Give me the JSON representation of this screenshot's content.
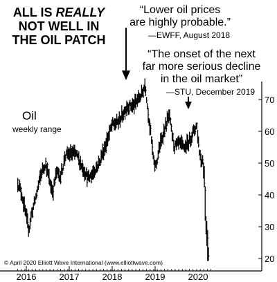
{
  "title": {
    "line1_a": "ALL IS ",
    "line1_b": "REALLY",
    "line2": "NOT WELL IN",
    "line3": "THE OIL PATCH"
  },
  "quote1": {
    "line1": "“Lower oil prices",
    "line2": "are highly probable.”",
    "attribution": "—EWFF, August 2018"
  },
  "quote2": {
    "line1": "“The onset of the next",
    "line2": "far more serious decline",
    "line3": "in the oil market”",
    "attribution": "—STU, December 2019"
  },
  "series_label": "Oil",
  "series_sublabel": "weekly range",
  "copyright": "© April 2020 Elliott Wave International (www.elliottwave.com)",
  "colors": {
    "bars": "#000000",
    "arrows": "#000000",
    "background": "#ffffff"
  },
  "chart_data": {
    "type": "bar",
    "subtype": "weekly high-low range",
    "series": [
      {
        "name": "Oil"
      }
    ],
    "x_labels": [
      "2016",
      "2017",
      "2018",
      "2019",
      "2020"
    ],
    "x_tick_years": [
      2016,
      2017,
      2018,
      2019,
      2020
    ],
    "xlim": [
      2015.8,
      2020.4
    ],
    "y_ticks": [
      20,
      30,
      40,
      50,
      60,
      70
    ],
    "ylim": [
      17,
      80
    ],
    "y_axis_side": "right",
    "waypoints": [
      [
        2015.8,
        44
      ],
      [
        2015.9,
        40
      ],
      [
        2016.0,
        33
      ],
      [
        2016.06,
        29
      ],
      [
        2016.12,
        34
      ],
      [
        2016.2,
        38
      ],
      [
        2016.35,
        47
      ],
      [
        2016.45,
        50
      ],
      [
        2016.55,
        44
      ],
      [
        2016.62,
        41
      ],
      [
        2016.7,
        47
      ],
      [
        2016.8,
        46
      ],
      [
        2016.9,
        52
      ],
      [
        2017.0,
        53
      ],
      [
        2017.15,
        53
      ],
      [
        2017.3,
        49
      ],
      [
        2017.45,
        45
      ],
      [
        2017.55,
        47
      ],
      [
        2017.7,
        50
      ],
      [
        2017.85,
        56
      ],
      [
        2018.0,
        62
      ],
      [
        2018.15,
        63
      ],
      [
        2018.35,
        68
      ],
      [
        2018.5,
        68
      ],
      [
        2018.6,
        70
      ],
      [
        2018.7,
        72
      ],
      [
        2018.77,
        75
      ],
      [
        2018.82,
        68
      ],
      [
        2018.9,
        59
      ],
      [
        2018.97,
        50
      ],
      [
        2019.02,
        49
      ],
      [
        2019.1,
        55
      ],
      [
        2019.25,
        62
      ],
      [
        2019.33,
        65
      ],
      [
        2019.38,
        60
      ],
      [
        2019.45,
        55
      ],
      [
        2019.55,
        56
      ],
      [
        2019.7,
        55
      ],
      [
        2019.8,
        57
      ],
      [
        2019.9,
        60
      ],
      [
        2019.97,
        62
      ],
      [
        2020.03,
        54
      ],
      [
        2020.07,
        51
      ],
      [
        2020.11,
        51
      ],
      [
        2020.15,
        45
      ],
      [
        2020.17,
        34
      ],
      [
        2020.2,
        28
      ],
      [
        2020.23,
        23
      ],
      [
        2020.26,
        21
      ]
    ],
    "annotations": [
      {
        "text_ref": "quote1",
        "arrow_to": [
          2018.77,
          77
        ]
      },
      {
        "text_ref": "quote2",
        "arrow_to": [
          2019.94,
          65
        ]
      }
    ],
    "grid": false,
    "legend": "none"
  }
}
